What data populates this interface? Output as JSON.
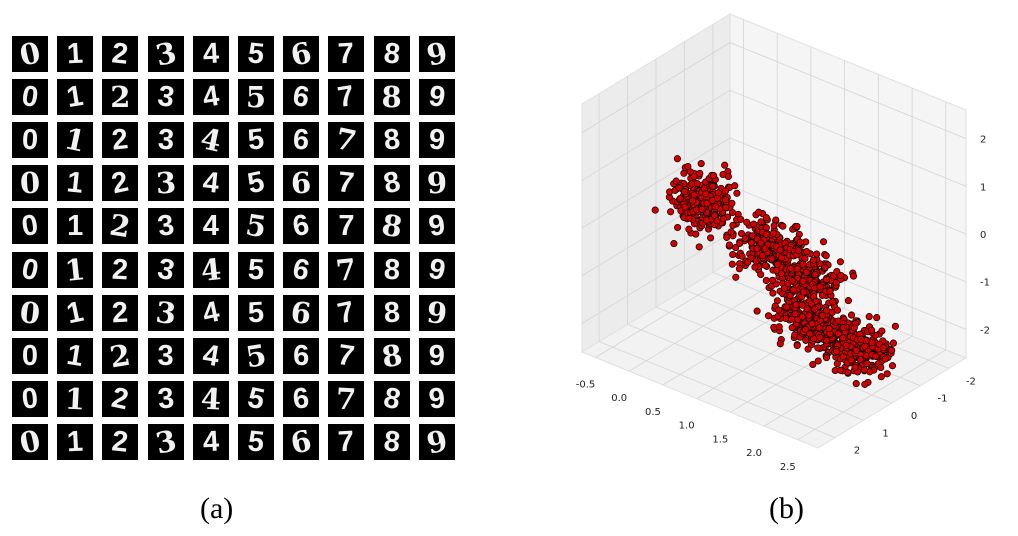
{
  "panel_a": {
    "caption": "(a)",
    "digit_rows": [
      [
        "0",
        "1",
        "2",
        "3",
        "4",
        "5",
        "6",
        "7",
        "8",
        "9"
      ],
      [
        "0",
        "1",
        "2",
        "3",
        "4",
        "5",
        "6",
        "7",
        "8",
        "9"
      ],
      [
        "0",
        "1",
        "2",
        "3",
        "4",
        "5",
        "6",
        "7",
        "8",
        "9"
      ],
      [
        "0",
        "1",
        "2",
        "3",
        "4",
        "5",
        "6",
        "7",
        "8",
        "9"
      ],
      [
        "0",
        "1",
        "2",
        "3",
        "4",
        "5",
        "6",
        "7",
        "8",
        "9"
      ],
      [
        "0",
        "1",
        "2",
        "3",
        "4",
        "5",
        "6",
        "7",
        "8",
        "9"
      ],
      [
        "0",
        "1",
        "2",
        "3",
        "4",
        "5",
        "6",
        "7",
        "8",
        "9"
      ],
      [
        "0",
        "1",
        "2",
        "3",
        "4",
        "5",
        "6",
        "7",
        "8",
        "9"
      ],
      [
        "0",
        "1",
        "2",
        "3",
        "4",
        "5",
        "6",
        "7",
        "8",
        "9"
      ],
      [
        "0",
        "1",
        "2",
        "3",
        "4",
        "5",
        "6",
        "7",
        "8",
        "9"
      ]
    ]
  },
  "panel_b": {
    "caption": "(b)",
    "chart_data": {
      "type": "scatter",
      "projection": "3d",
      "marker_color": "#d40000",
      "marker_edge": "#000000",
      "grid": true,
      "x_ticks": [
        "-0.5",
        "0.0",
        "0.5",
        "1.0",
        "1.5",
        "2.0",
        "2.5"
      ],
      "y_ticks": [
        "-2",
        "-1",
        "0",
        "1",
        "2"
      ],
      "z_ticks": [
        "-2",
        "-1",
        "0",
        "1",
        "2"
      ],
      "xlim": [
        -0.7,
        2.8
      ],
      "ylim": [
        -2.6,
        2.6
      ],
      "zlim": [
        -2.6,
        2.6
      ],
      "clusters": [
        {
          "center": [
            0.0,
            0.0,
            0.0
          ],
          "spread": [
            0.18,
            0.35,
            0.25
          ]
        },
        {
          "center": [
            1.7,
            1.8,
            0.7
          ],
          "spread": [
            0.25,
            0.35,
            0.2
          ]
        },
        {
          "center": [
            2.1,
            1.4,
            0.1
          ],
          "spread": [
            0.22,
            0.3,
            0.2
          ]
        },
        {
          "center": [
            1.2,
            -1.0,
            -2.2
          ],
          "spread": [
            0.22,
            0.3,
            0.2
          ]
        },
        {
          "center": [
            1.7,
            -1.4,
            -2.6
          ],
          "spread": [
            0.22,
            0.3,
            0.2
          ]
        }
      ]
    }
  }
}
